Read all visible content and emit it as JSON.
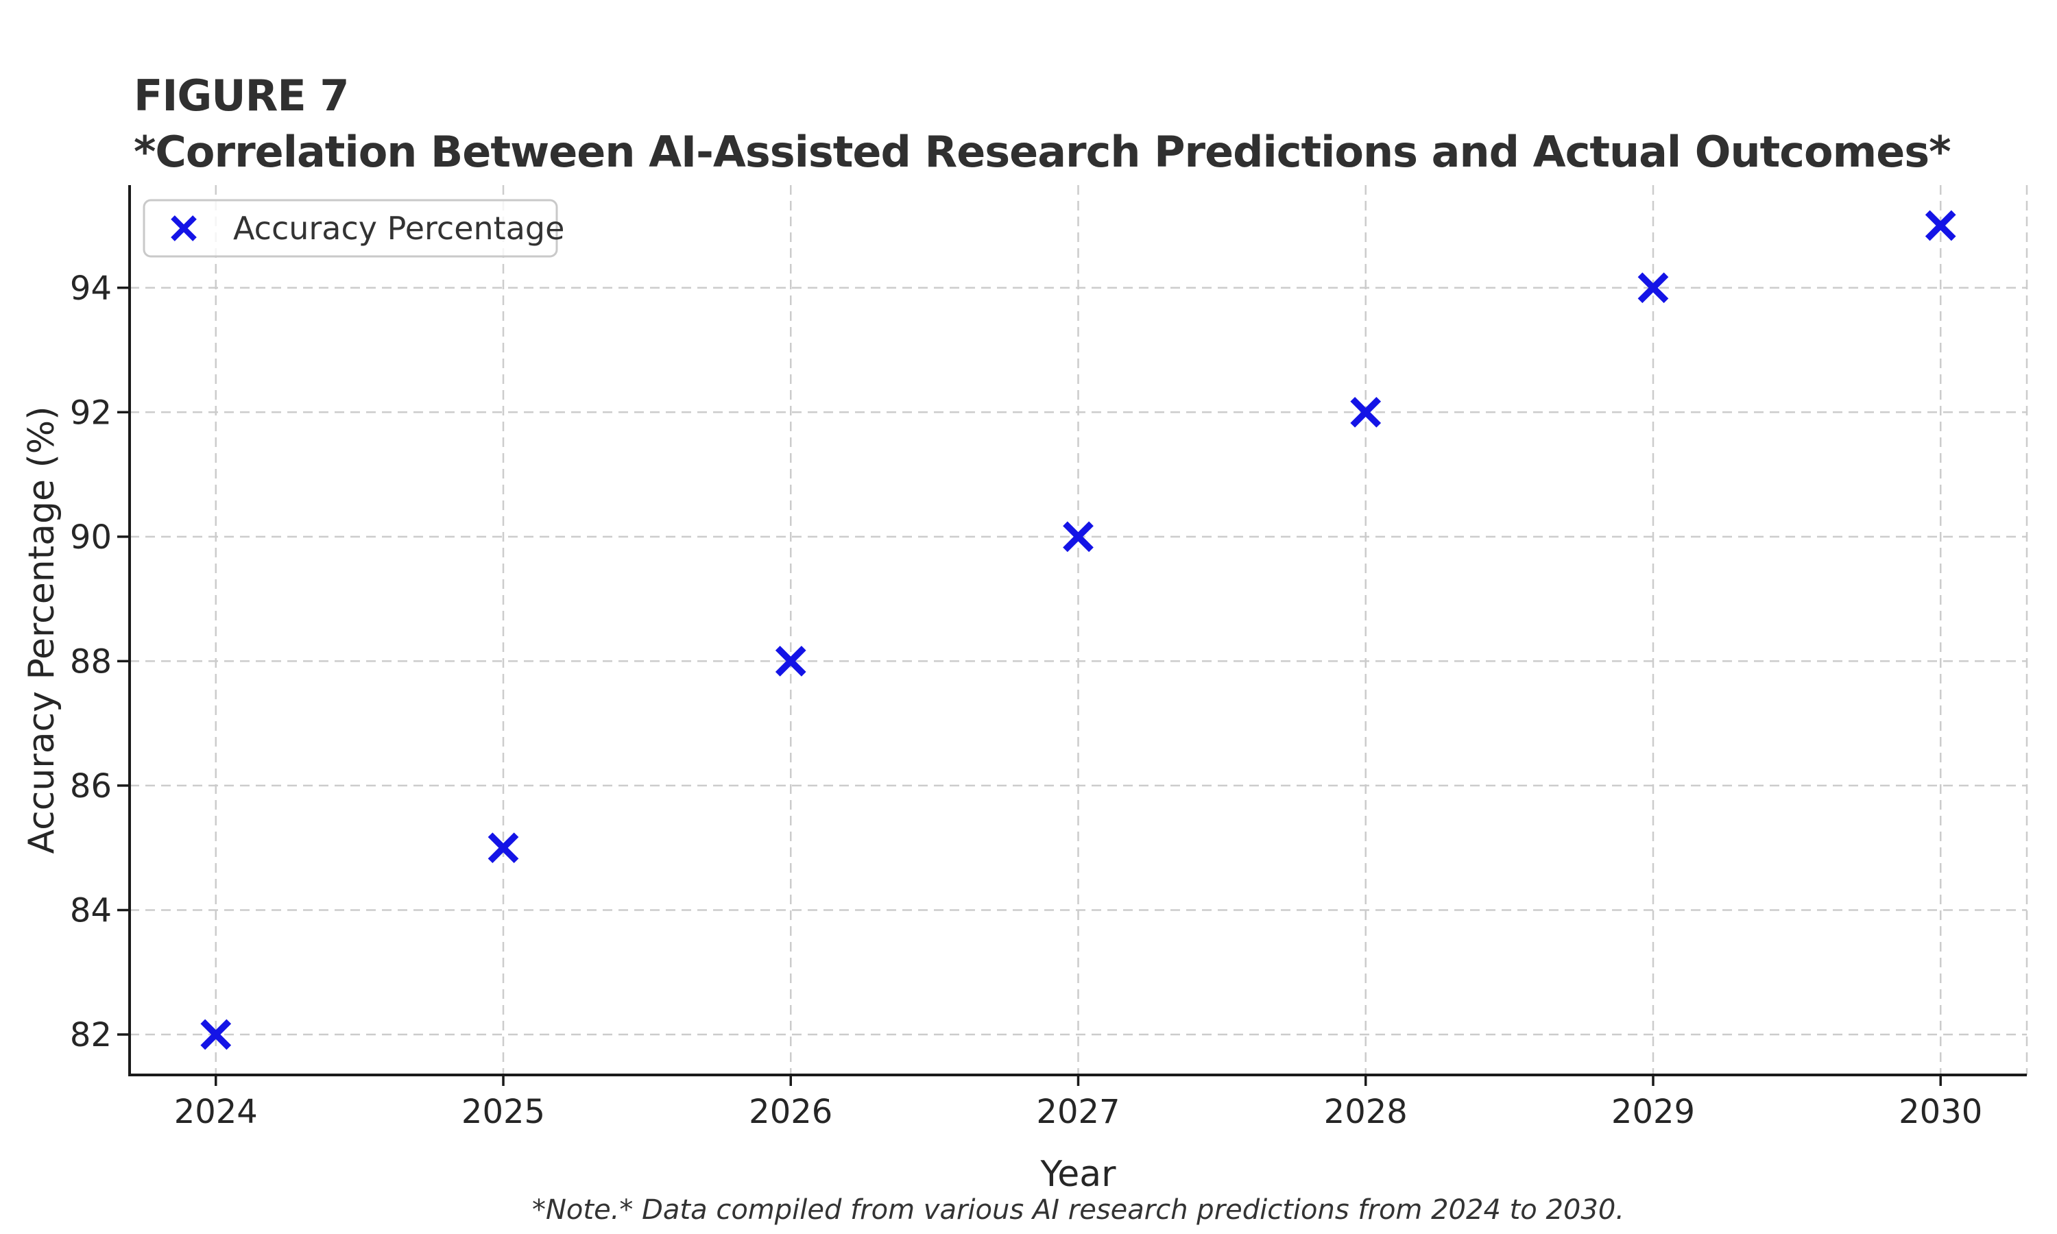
{
  "figure": {
    "title": "FIGURE 7",
    "subtitle": "*Correlation Between AI-Assisted Research Predictions and Actual Outcomes*",
    "note": "*Note.* Data compiled from various AI research predictions from 2024 to 2030."
  },
  "chart_data": {
    "type": "scatter",
    "title": "FIGURE 7 *Correlation Between AI-Assisted Research Predictions and Actual Outcomes*",
    "x": [
      2024,
      2025,
      2026,
      2027,
      2028,
      2029,
      2030
    ],
    "series": [
      {
        "name": "Accuracy Percentage",
        "values": [
          82,
          85,
          88,
          90,
          92,
          94,
          95
        ]
      }
    ],
    "xlabel": "Year",
    "ylabel": "Accuracy Percentage (%)",
    "xlim": [
      2023.7,
      2030.3
    ],
    "ylim": [
      81.35,
      95.65
    ],
    "xticks": [
      "2024",
      "2025",
      "2026",
      "2027",
      "2028",
      "2029",
      "2030"
    ],
    "xtick_values": [
      2024,
      2025,
      2026,
      2027,
      2028,
      2029,
      2030
    ],
    "yticks": [
      "82",
      "84",
      "86",
      "88",
      "90",
      "92",
      "94"
    ],
    "ytick_values": [
      82,
      84,
      86,
      88,
      90,
      92,
      94
    ],
    "grid": true,
    "grid_style": "dashed",
    "marker": "x",
    "legend": {
      "position": "upper-left",
      "entries": [
        "Accuracy Percentage"
      ]
    },
    "colors": {
      "marker": "#1414e6",
      "grid": "#cccccc",
      "spine": "#1a1a1a",
      "tick_text": "#262626",
      "axis_label_text": "#262626",
      "legend_text": "#333333",
      "legend_border": "#c9c9c9",
      "background": "#ffffff"
    }
  }
}
